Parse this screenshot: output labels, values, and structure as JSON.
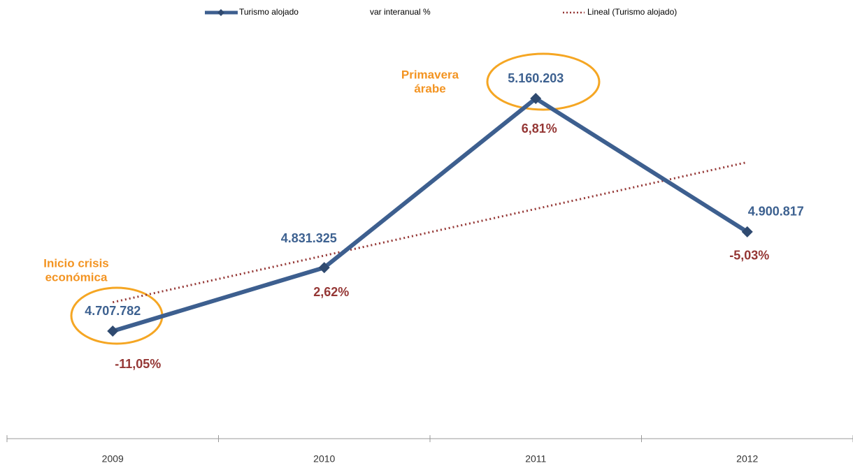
{
  "chart_data": {
    "type": "line",
    "categories": [
      "2009",
      "2010",
      "2011",
      "2012"
    ],
    "series": [
      {
        "name": "Turismo alojado",
        "color": "#3d5f8f",
        "values": [
          4707782,
          4831325,
          5160203,
          4900817
        ],
        "value_labels": [
          "4.707.782",
          "4.831.325",
          "5.160.203",
          "4.900.817"
        ]
      },
      {
        "name": "var interanual %",
        "color": "#953735",
        "values": [
          -11.05,
          2.62,
          6.81,
          -5.03
        ],
        "value_labels": [
          "-11,05%",
          "2,62%",
          "6,81%",
          "-5,03%"
        ]
      }
    ],
    "trendline": {
      "name": "Lineal (Turismo alojado)",
      "color": "#953735"
    },
    "annotations": [
      [
        "Inicio crisis",
        "económica"
      ],
      [
        "Primavera",
        "árabe"
      ]
    ],
    "legend": "top"
  }
}
